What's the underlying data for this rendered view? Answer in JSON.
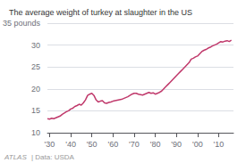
{
  "chart_data": {
    "type": "line",
    "title": "The average weight of turkey at slaughter in the US",
    "annotations": [
      "ATLAS",
      "| Data: USDA"
    ],
    "color": "#c0396b",
    "grid": true,
    "xlim": [
      1929,
      2017
    ],
    "xticks": [
      {
        "value": 1930,
        "label": "'30"
      },
      {
        "value": 1940,
        "label": "'40"
      },
      {
        "value": 1950,
        "label": "'50"
      },
      {
        "value": 1960,
        "label": "'60"
      },
      {
        "value": 1970,
        "label": "'70"
      },
      {
        "value": 1980,
        "label": "'80"
      },
      {
        "value": 1990,
        "label": "'90"
      },
      {
        "value": 2000,
        "label": "'00"
      },
      {
        "value": 2010,
        "label": "'10"
      }
    ],
    "ylim": [
      10,
      35
    ],
    "yticks": [
      10,
      15,
      20,
      25,
      30,
      {
        "value": 35,
        "label": "35 pounds"
      }
    ],
    "x": [
      1929,
      1930,
      1931,
      1932,
      1933,
      1934,
      1935,
      1936,
      1937,
      1938,
      1939,
      1940,
      1941,
      1942,
      1943,
      1944,
      1945,
      1946,
      1947,
      1948,
      1949,
      1950,
      1951,
      1952,
      1953,
      1954,
      1955,
      1956,
      1957,
      1958,
      1959,
      1960,
      1961,
      1962,
      1963,
      1964,
      1965,
      1966,
      1967,
      1968,
      1969,
      1970,
      1971,
      1972,
      1973,
      1974,
      1975,
      1976,
      1977,
      1978,
      1979,
      1980,
      1981,
      1982,
      1983,
      1984,
      1985,
      1986,
      1987,
      1988,
      1989,
      1990,
      1991,
      1992,
      1993,
      1994,
      1995,
      1996,
      1997,
      1998,
      1999,
      2000,
      2001,
      2002,
      2003,
      2004,
      2005,
      2006,
      2007,
      2008,
      2009,
      2010,
      2011,
      2012,
      2013,
      2014,
      2015,
      2016
    ],
    "values": [
      13.2,
      13.1,
      13.3,
      13.2,
      13.4,
      13.6,
      13.8,
      14.2,
      14.5,
      14.8,
      15.0,
      15.4,
      15.6,
      16.0,
      16.2,
      16.5,
      16.3,
      16.8,
      17.5,
      18.5,
      18.8,
      19.0,
      18.5,
      17.5,
      17.0,
      17.2,
      17.3,
      16.8,
      16.7,
      16.9,
      17.0,
      17.2,
      17.3,
      17.4,
      17.5,
      17.6,
      17.8,
      18.0,
      18.2,
      18.5,
      18.8,
      19.0,
      19.0,
      18.8,
      18.7,
      18.6,
      18.8,
      19.0,
      19.2,
      19.0,
      19.1,
      18.8,
      19.0,
      19.2,
      19.5,
      20.0,
      20.5,
      21.0,
      21.5,
      22.0,
      22.5,
      23.0,
      23.5,
      24.0,
      24.5,
      25.0,
      25.5,
      26.0,
      26.8,
      27.0,
      27.3,
      27.5,
      28.0,
      28.5,
      28.8,
      29.0,
      29.3,
      29.5,
      29.8,
      30.0,
      30.2,
      30.5,
      30.8,
      30.7,
      30.9,
      31.0,
      30.8,
      31.1
    ]
  }
}
